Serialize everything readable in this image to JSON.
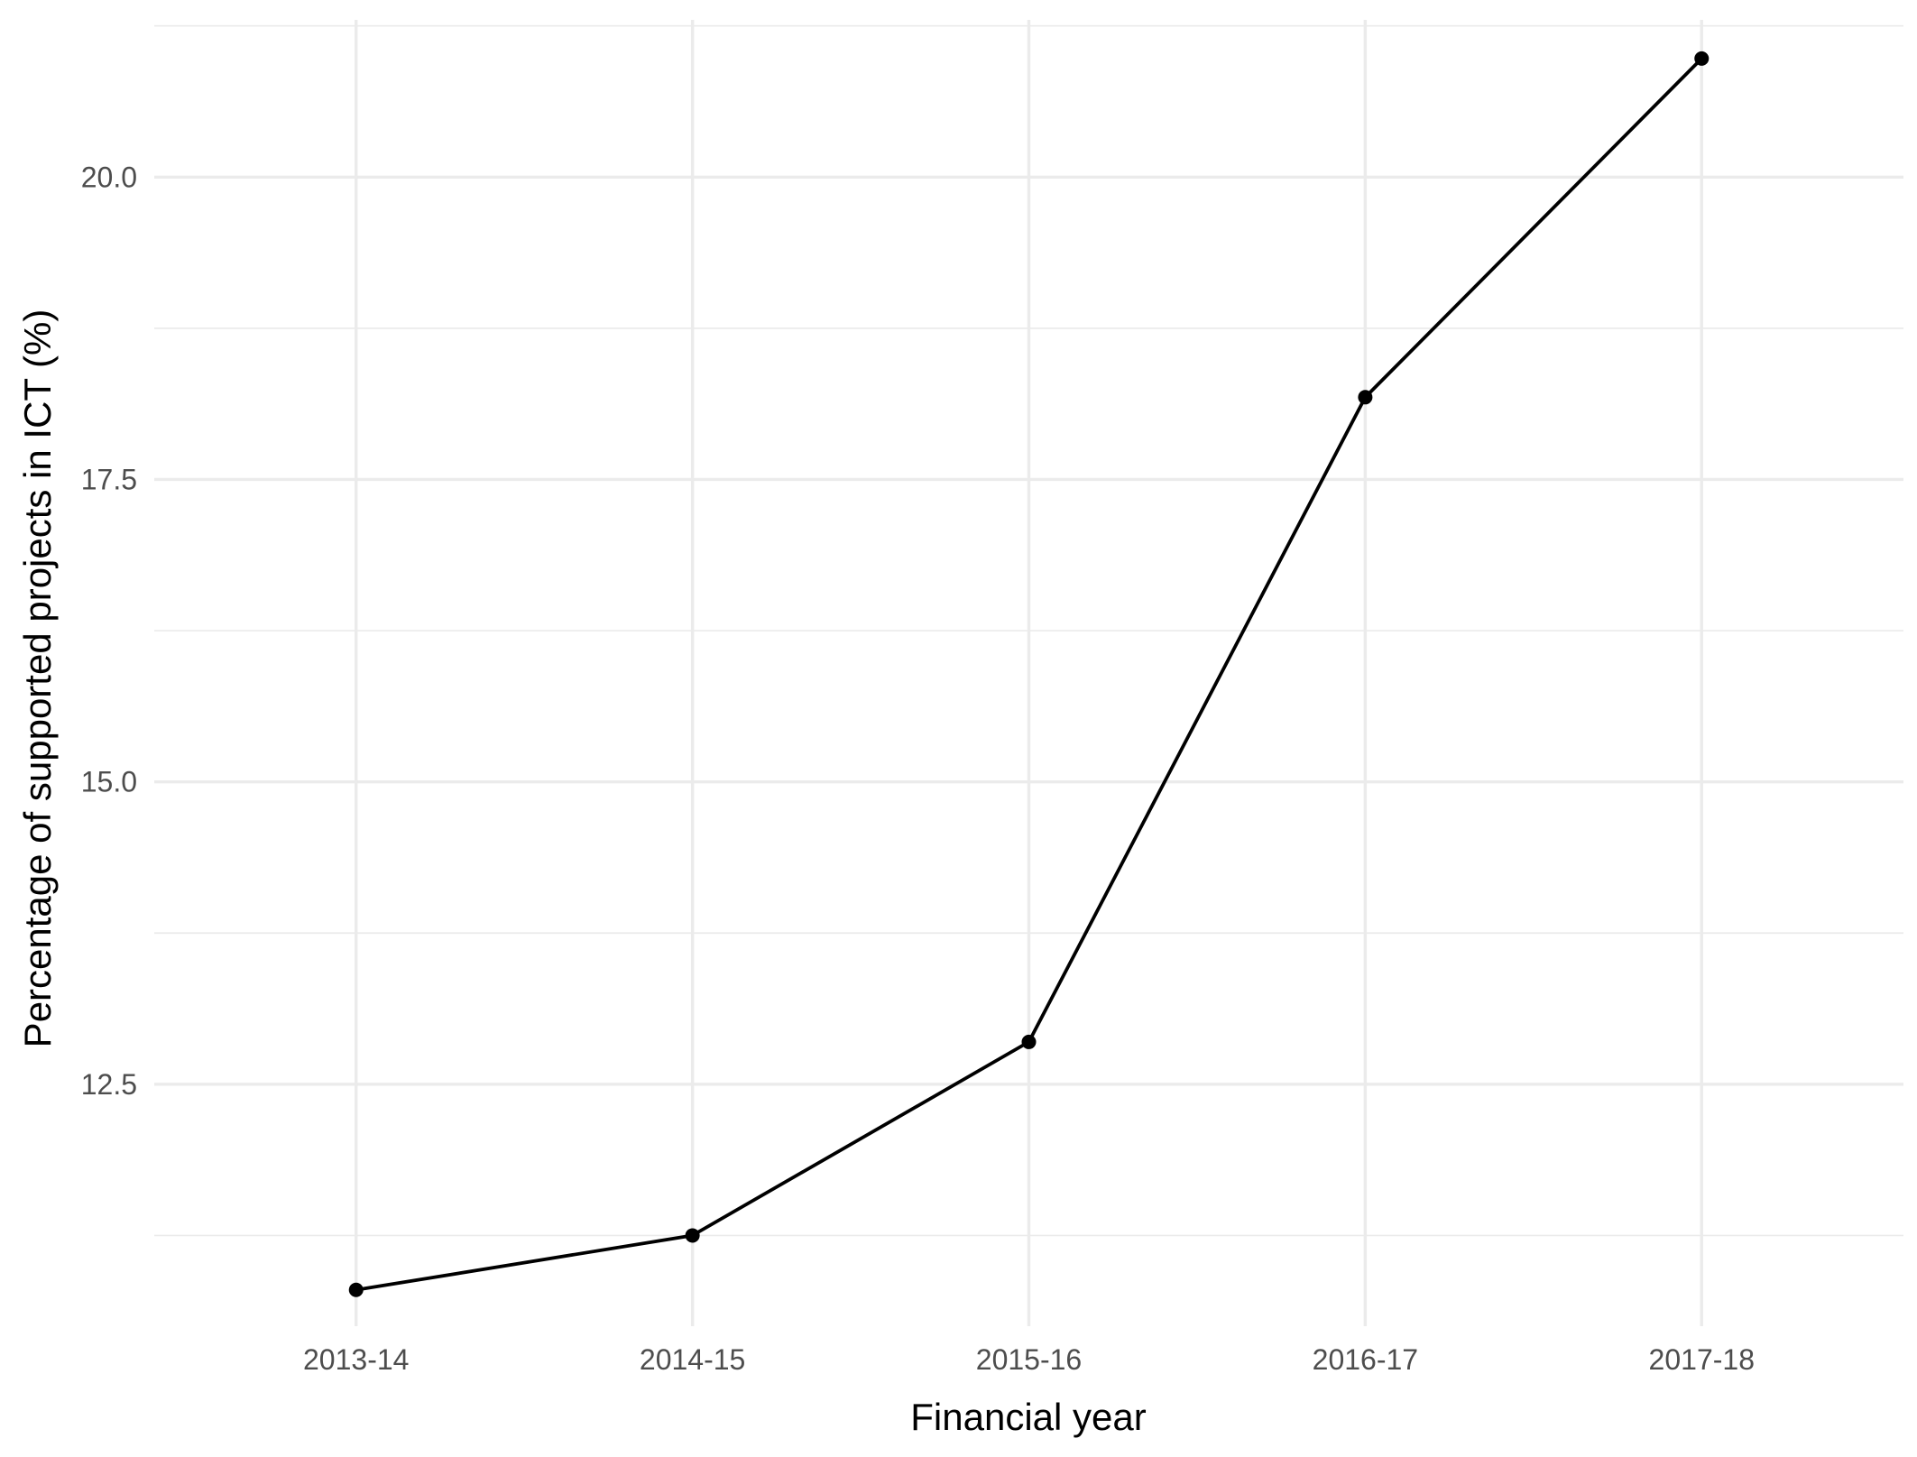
{
  "chart_data": {
    "type": "line",
    "title": "",
    "xlabel": "Financial year",
    "ylabel": "Percentage of supported projects in ICT (%)",
    "categories": [
      "2013-14",
      "2014-15",
      "2015-16",
      "2016-17",
      "2017-18"
    ],
    "series": [
      {
        "values": [
          10.8,
          11.25,
          12.85,
          18.18,
          20.98
        ]
      }
    ],
    "ylim": [
      10.5,
      21.3
    ],
    "yticks": [
      12.5,
      15.0,
      17.5,
      20.0
    ],
    "ytick_labels": [
      "12.5",
      "15.0",
      "17.5",
      "20.0"
    ],
    "y_minor_ticks": [
      11.25,
      13.75,
      16.25,
      18.75,
      21.25
    ],
    "grid": true,
    "legend": "none",
    "colors": {
      "line": "#000000",
      "grid": "#ebebeb",
      "tick_text": "#4d4d4d",
      "axis_title": "#000000",
      "background": "#ffffff"
    }
  }
}
